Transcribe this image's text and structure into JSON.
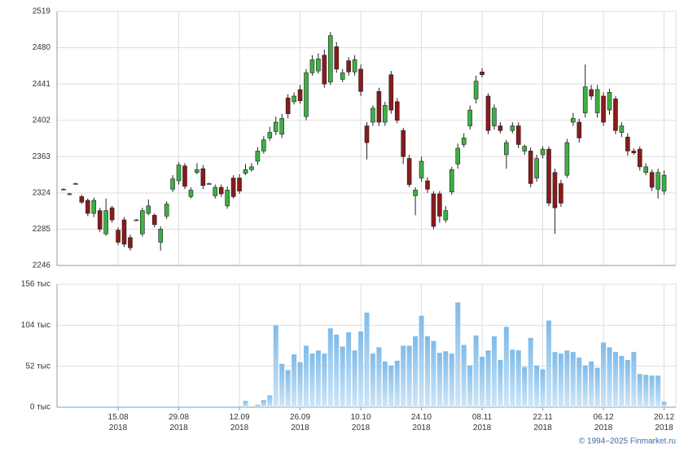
{
  "chart_data": [
    {
      "type": "candlestick",
      "open": [
        2328,
        2323,
        2334,
        2320,
        2316,
        2302,
        2305,
        2280,
        2308,
        2284,
        2295,
        2276,
        2295,
        2280,
        2302,
        2300,
        2271,
        2299,
        2328,
        2337,
        2353,
        2320,
        2346,
        2350,
        2334,
        2321,
        2330,
        2310,
        2340,
        2340,
        2345,
        2349,
        2358,
        2369,
        2383,
        2390,
        2387,
        2426,
        2422,
        2435,
        2406,
        2453,
        2455,
        2472,
        2443,
        2481,
        2446,
        2466,
        2454,
        2457,
        2396,
        2400,
        2433,
        2400,
        2451,
        2422,
        2391,
        2361,
        2321,
        2340,
        2337,
        2323,
        2323,
        2295,
        2325,
        2355,
        2376,
        2396,
        2425,
        2454,
        2428,
        2396,
        2396,
        2365,
        2391,
        2396,
        2369,
        2369,
        2340,
        2365,
        2371,
        2346,
        2334,
        2343,
        2400,
        2400,
        2410,
        2435,
        2410,
        2428,
        2413,
        2425,
        2389,
        2384,
        2369,
        2371,
        2346,
        2346,
        2328,
        2326
      ],
      "high": [
        2329,
        2324,
        2335,
        2322,
        2318,
        2319,
        2308,
        2318,
        2310,
        2287,
        2298,
        2279,
        2296,
        2308,
        2317,
        2302,
        2288,
        2315,
        2343,
        2357,
        2356,
        2330,
        2356,
        2354,
        2335,
        2333,
        2333,
        2331,
        2343,
        2344,
        2355,
        2356,
        2373,
        2385,
        2395,
        2406,
        2409,
        2430,
        2432,
        2440,
        2457,
        2472,
        2474,
        2478,
        2497,
        2486,
        2457,
        2470,
        2472,
        2462,
        2400,
        2418,
        2437,
        2422,
        2455,
        2426,
        2394,
        2365,
        2330,
        2363,
        2341,
        2326,
        2326,
        2310,
        2352,
        2377,
        2388,
        2418,
        2450,
        2458,
        2431,
        2419,
        2400,
        2381,
        2400,
        2400,
        2376,
        2373,
        2365,
        2374,
        2374,
        2350,
        2338,
        2382,
        2410,
        2404,
        2462,
        2440,
        2440,
        2432,
        2436,
        2428,
        2400,
        2388,
        2372,
        2374,
        2356,
        2349,
        2350,
        2348
      ],
      "low": [
        2327,
        2322,
        2333,
        2312,
        2299,
        2298,
        2282,
        2278,
        2292,
        2268,
        2266,
        2262,
        2294,
        2277,
        2300,
        2287,
        2262,
        2296,
        2325,
        2333,
        2328,
        2318,
        2344,
        2328,
        2333,
        2318,
        2320,
        2307,
        2318,
        2323,
        2343,
        2347,
        2354,
        2366,
        2380,
        2386,
        2383,
        2404,
        2419,
        2420,
        2402,
        2450,
        2452,
        2437,
        2440,
        2453,
        2443,
        2450,
        2450,
        2428,
        2360,
        2396,
        2396,
        2396,
        2409,
        2399,
        2355,
        2330,
        2300,
        2336,
        2324,
        2285,
        2292,
        2292,
        2322,
        2350,
        2373,
        2392,
        2420,
        2448,
        2387,
        2392,
        2388,
        2350,
        2388,
        2372,
        2365,
        2330,
        2336,
        2361,
        2310,
        2280,
        2309,
        2340,
        2396,
        2378,
        2405,
        2424,
        2405,
        2396,
        2408,
        2387,
        2384,
        2364,
        2365,
        2348,
        2343,
        2326,
        2318,
        2322
      ],
      "close": [
        2328,
        2323,
        2334,
        2314,
        2302,
        2316,
        2285,
        2305,
        2295,
        2271,
        2269,
        2265,
        2295,
        2305,
        2310,
        2290,
        2285,
        2312,
        2339,
        2354,
        2331,
        2327,
        2349,
        2332,
        2334,
        2330,
        2323,
        2327,
        2320,
        2326,
        2349,
        2352,
        2369,
        2381,
        2389,
        2400,
        2404,
        2409,
        2428,
        2423,
        2453,
        2467,
        2468,
        2441,
        2493,
        2457,
        2453,
        2454,
        2467,
        2433,
        2378,
        2415,
        2400,
        2418,
        2413,
        2402,
        2363,
        2333,
        2327,
        2358,
        2328,
        2288,
        2299,
        2305,
        2349,
        2372,
        2383,
        2413,
        2444,
        2451,
        2391,
        2415,
        2391,
        2378,
        2396,
        2376,
        2374,
        2334,
        2361,
        2371,
        2313,
        2308,
        2313,
        2378,
        2404,
        2383,
        2438,
        2428,
        2435,
        2400,
        2432,
        2391,
        2396,
        2369,
        2367,
        2352,
        2352,
        2330,
        2346,
        2343
      ],
      "up_color": "#3cb043",
      "down_color": "#8b1a1a",
      "ylim": [
        2246,
        2519
      ],
      "yticks": [
        2246,
        2285,
        2324,
        2363,
        2402,
        2441,
        2480,
        2519
      ],
      "grid": true
    },
    {
      "type": "bar",
      "categories": [
        null,
        null,
        null,
        null,
        null,
        null,
        null,
        null,
        null,
        "15.08\n2018",
        null,
        null,
        null,
        null,
        null,
        null,
        null,
        null,
        null,
        "29.08\n2018",
        null,
        null,
        null,
        null,
        null,
        null,
        null,
        null,
        null,
        "12.09\n2018",
        null,
        null,
        null,
        null,
        null,
        null,
        null,
        null,
        null,
        "26.09\n2018",
        null,
        null,
        null,
        null,
        null,
        null,
        null,
        null,
        null,
        "10.10\n2018",
        null,
        null,
        null,
        null,
        null,
        null,
        null,
        null,
        null,
        "24.10\n2018",
        null,
        null,
        null,
        null,
        null,
        null,
        null,
        null,
        null,
        "08.11\n2018",
        null,
        null,
        null,
        null,
        null,
        null,
        null,
        null,
        null,
        "22.11\n2018",
        null,
        null,
        null,
        null,
        null,
        null,
        null,
        null,
        null,
        "06.12\n2018",
        null,
        null,
        null,
        null,
        null,
        null,
        null,
        null,
        null,
        "20.12\n2018"
      ],
      "values": [
        1,
        1,
        1,
        1,
        1,
        1,
        1,
        1,
        1,
        1,
        1,
        1,
        1,
        1,
        1,
        1,
        1,
        1,
        1,
        1,
        1,
        1,
        1,
        1,
        1,
        1,
        1,
        1,
        1,
        1,
        8,
        1,
        3,
        9,
        15,
        104,
        55,
        47,
        67,
        57,
        78,
        68,
        72,
        68,
        100,
        92,
        77,
        95,
        72,
        96,
        120,
        68,
        76,
        58,
        53,
        59,
        78,
        78,
        90,
        116,
        90,
        84,
        69,
        71,
        68,
        133,
        79,
        53,
        91,
        64,
        72,
        90,
        60,
        102,
        73,
        72,
        51,
        88,
        53,
        48,
        110,
        70,
        68,
        72,
        70,
        63,
        53,
        58,
        50,
        82,
        76,
        70,
        65,
        60,
        70,
        42,
        41,
        40,
        40,
        7
      ],
      "color": "#7fbbe9",
      "ylim": [
        0,
        156
      ],
      "yticks": [
        {
          "value": 0,
          "label": "0 тыс"
        },
        {
          "value": 52,
          "label": "52 тыс"
        },
        {
          "value": 104,
          "label": "104 тыс"
        },
        {
          "value": 156,
          "label": "156 тыс"
        }
      ],
      "grid": true
    }
  ],
  "source": "© 1994–2025 Finmarket.ru"
}
